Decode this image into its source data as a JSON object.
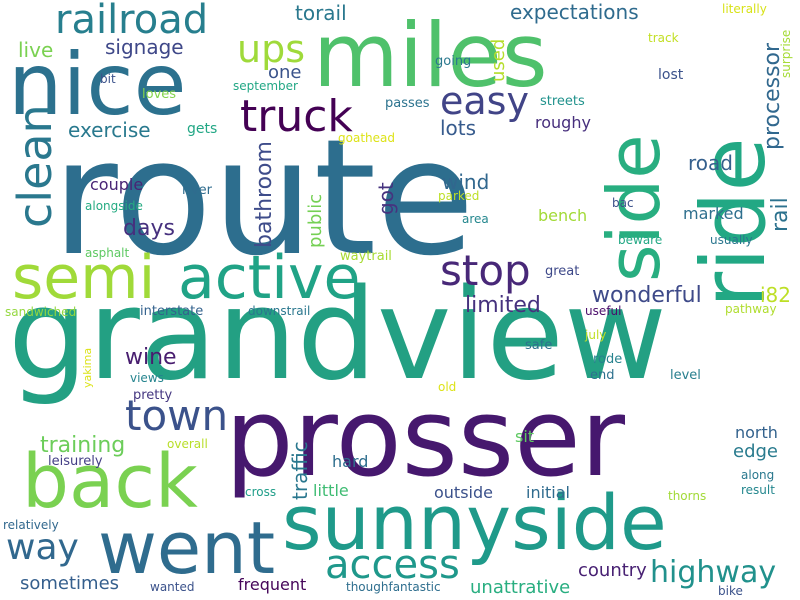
{
  "words": [
    {
      "id": "w1",
      "text": "route",
      "color": "#2d6e8e"
    },
    {
      "id": "w2",
      "text": "grandview",
      "color": "#23a083"
    },
    {
      "id": "w3",
      "text": "prosser",
      "color": "#46186e"
    },
    {
      "id": "w4",
      "text": "miles",
      "color": "#4fc16b"
    },
    {
      "id": "w5",
      "text": "ride",
      "color": "#22a884"
    },
    {
      "id": "w6",
      "text": "sunnyside",
      "color": "#1f9a8a"
    },
    {
      "id": "w7",
      "text": "nice",
      "color": "#2c718e"
    },
    {
      "id": "w8",
      "text": "side",
      "color": "#28ae80"
    },
    {
      "id": "w9",
      "text": "went",
      "color": "#2f6c8e"
    },
    {
      "id": "w10",
      "text": "back",
      "color": "#7ad151"
    },
    {
      "id": "w11",
      "text": "active",
      "color": "#20a386"
    },
    {
      "id": "w12",
      "text": "semi",
      "color": "#a0da39"
    },
    {
      "id": "w13",
      "text": "railroad",
      "color": "#277f8e"
    },
    {
      "id": "w14",
      "text": "truck",
      "color": "#440154"
    },
    {
      "id": "w15",
      "text": "town",
      "color": "#3b528b"
    },
    {
      "id": "w16",
      "text": "clean",
      "color": "#2a788e"
    },
    {
      "id": "w17",
      "text": "stop",
      "color": "#482878"
    },
    {
      "id": "w18",
      "text": "easy",
      "color": "#414487"
    },
    {
      "id": "w19",
      "text": "ups",
      "color": "#9fda3a"
    },
    {
      "id": "w20",
      "text": "access",
      "color": "#1f988b"
    },
    {
      "id": "w21",
      "text": "highway",
      "color": "#21918c"
    },
    {
      "id": "w22",
      "text": "way",
      "color": "#31688e"
    },
    {
      "id": "w23",
      "text": "wonderful",
      "color": "#3e4a89"
    },
    {
      "id": "w24",
      "text": "limited",
      "color": "#46327e"
    },
    {
      "id": "w25",
      "text": "processor",
      "color": "#31688e"
    },
    {
      "id": "w26",
      "text": "rail",
      "color": "#2c728e"
    },
    {
      "id": "w27",
      "text": "training",
      "color": "#6ccd5a"
    },
    {
      "id": "w28",
      "text": "wine",
      "color": "#481d6f"
    },
    {
      "id": "w29",
      "text": "days",
      "color": "#46307e"
    },
    {
      "id": "w30",
      "text": "bathroom",
      "color": "#3e4c8a"
    },
    {
      "id": "w31",
      "text": "exercise",
      "color": "#29798e"
    },
    {
      "id": "w32",
      "text": "expectations",
      "color": "#2f6b8e"
    },
    {
      "id": "w33",
      "text": "torail",
      "color": "#2a788e"
    },
    {
      "id": "w34",
      "text": "signage",
      "color": "#3f4889"
    },
    {
      "id": "w35",
      "text": "live",
      "color": "#7ad151"
    },
    {
      "id": "w36",
      "text": "one",
      "color": "#3a538b"
    },
    {
      "id": "w37",
      "text": "used",
      "color": "#b5de2b"
    },
    {
      "id": "w38",
      "text": "lots",
      "color": "#375b8d"
    },
    {
      "id": "w39",
      "text": "roughy",
      "color": "#472f7d"
    },
    {
      "id": "w40",
      "text": "road",
      "color": "#35608d"
    },
    {
      "id": "w41",
      "text": "wind",
      "color": "#31678e"
    },
    {
      "id": "w42",
      "text": "got",
      "color": "#46337f"
    },
    {
      "id": "w43",
      "text": "public",
      "color": "#75d054"
    },
    {
      "id": "w44",
      "text": "marked",
      "color": "#2e6f8e"
    },
    {
      "id": "w45",
      "text": "bench",
      "color": "#a2da37"
    },
    {
      "id": "w46",
      "text": "couple",
      "color": "#482475"
    },
    {
      "id": "w47",
      "text": "i82",
      "color": "#bddf26"
    },
    {
      "id": "w48",
      "text": "traffic",
      "color": "#2a778e"
    },
    {
      "id": "w49",
      "text": "country",
      "color": "#482173"
    },
    {
      "id": "w50",
      "text": "unattrative",
      "color": "#28ae80"
    },
    {
      "id": "w51",
      "text": "sometimes",
      "color": "#355f8d"
    },
    {
      "id": "w52",
      "text": "frequent",
      "color": "#450559"
    },
    {
      "id": "w53",
      "text": "initial",
      "color": "#2f6b8e"
    },
    {
      "id": "w54",
      "text": "outside",
      "color": "#3b518b"
    },
    {
      "id": "w55",
      "text": "edge",
      "color": "#297b8e"
    },
    {
      "id": "w56",
      "text": "north",
      "color": "#33628d"
    },
    {
      "id": "w57",
      "text": "hard",
      "color": "#2e6e8e"
    },
    {
      "id": "w58",
      "text": "little",
      "color": "#3fbc73"
    },
    {
      "id": "w59",
      "text": "sit",
      "color": "#5ec962"
    },
    {
      "id": "w60",
      "text": "gets",
      "color": "#22a785"
    },
    {
      "id": "w61",
      "text": "going",
      "color": "#2a788e"
    },
    {
      "id": "w62",
      "text": "bit",
      "color": "#3b528b"
    },
    {
      "id": "w63",
      "text": "loves",
      "color": "#84d44b"
    },
    {
      "id": "w64",
      "text": "september",
      "color": "#22a785"
    },
    {
      "id": "w65",
      "text": "passes",
      "color": "#2c738e"
    },
    {
      "id": "w66",
      "text": "streets",
      "color": "#20928c"
    },
    {
      "id": "w67",
      "text": "lost",
      "color": "#3b528b"
    },
    {
      "id": "w68",
      "text": "track",
      "color": "#c2df23"
    },
    {
      "id": "w69",
      "text": "literally",
      "color": "#d8e219"
    },
    {
      "id": "w70",
      "text": "surprise",
      "color": "#a5db36"
    },
    {
      "id": "w71",
      "text": "goathead",
      "color": "#dde318"
    },
    {
      "id": "w72",
      "text": "river",
      "color": "#2f6c8e"
    },
    {
      "id": "w73",
      "text": "parked",
      "color": "#bddf26"
    },
    {
      "id": "w74",
      "text": "alongside",
      "color": "#25ab82"
    },
    {
      "id": "w75",
      "text": "area",
      "color": "#24878e"
    },
    {
      "id": "w76",
      "text": "bac",
      "color": "#3b518b"
    },
    {
      "id": "w77",
      "text": "beware",
      "color": "#22a884"
    },
    {
      "id": "w78",
      "text": "usually",
      "color": "#2a768e"
    },
    {
      "id": "w79",
      "text": "asphalt",
      "color": "#5ec962"
    },
    {
      "id": "w80",
      "text": "waytrail",
      "color": "#a8db34"
    },
    {
      "id": "w81",
      "text": "great",
      "color": "#3e4989"
    },
    {
      "id": "w82",
      "text": "sandwiched",
      "color": "#95d840"
    },
    {
      "id": "w83",
      "text": "interstate",
      "color": "#33628d"
    },
    {
      "id": "w84",
      "text": "downstrail",
      "color": "#2a778e"
    },
    {
      "id": "w85",
      "text": "useful",
      "color": "#4b0c6b"
    },
    {
      "id": "w86",
      "text": "pathway",
      "color": "#b0dd2f"
    },
    {
      "id": "w87",
      "text": "july",
      "color": "#c0df25"
    },
    {
      "id": "w88",
      "text": "safe",
      "color": "#2c728e"
    },
    {
      "id": "w89",
      "text": "rode",
      "color": "#26828e"
    },
    {
      "id": "w90",
      "text": "end",
      "color": "#2d718e"
    },
    {
      "id": "w91",
      "text": "level",
      "color": "#277f8e"
    },
    {
      "id": "w92",
      "text": "yakima",
      "color": "#dce319"
    },
    {
      "id": "w93",
      "text": "views",
      "color": "#25848e"
    },
    {
      "id": "w94",
      "text": "pretty",
      "color": "#453781"
    },
    {
      "id": "w95",
      "text": "old",
      "color": "#dde318"
    },
    {
      "id": "w96",
      "text": "leisurely",
      "color": "#433e85"
    },
    {
      "id": "w97",
      "text": "overall",
      "color": "#b8de29"
    },
    {
      "id": "w98",
      "text": "along",
      "color": "#2a788e"
    },
    {
      "id": "w99",
      "text": "result",
      "color": "#24878e"
    },
    {
      "id": "w100",
      "text": "thorns",
      "color": "#a2da37"
    },
    {
      "id": "w101",
      "text": "cross",
      "color": "#1f9e89"
    },
    {
      "id": "w102",
      "text": "relatively",
      "color": "#31688e"
    },
    {
      "id": "w103",
      "text": "wanted",
      "color": "#3b528b"
    },
    {
      "id": "w104",
      "text": "thoughfantastic",
      "color": "#2e6e8e"
    },
    {
      "id": "w105",
      "text": "bike",
      "color": "#3b528b"
    }
  ]
}
